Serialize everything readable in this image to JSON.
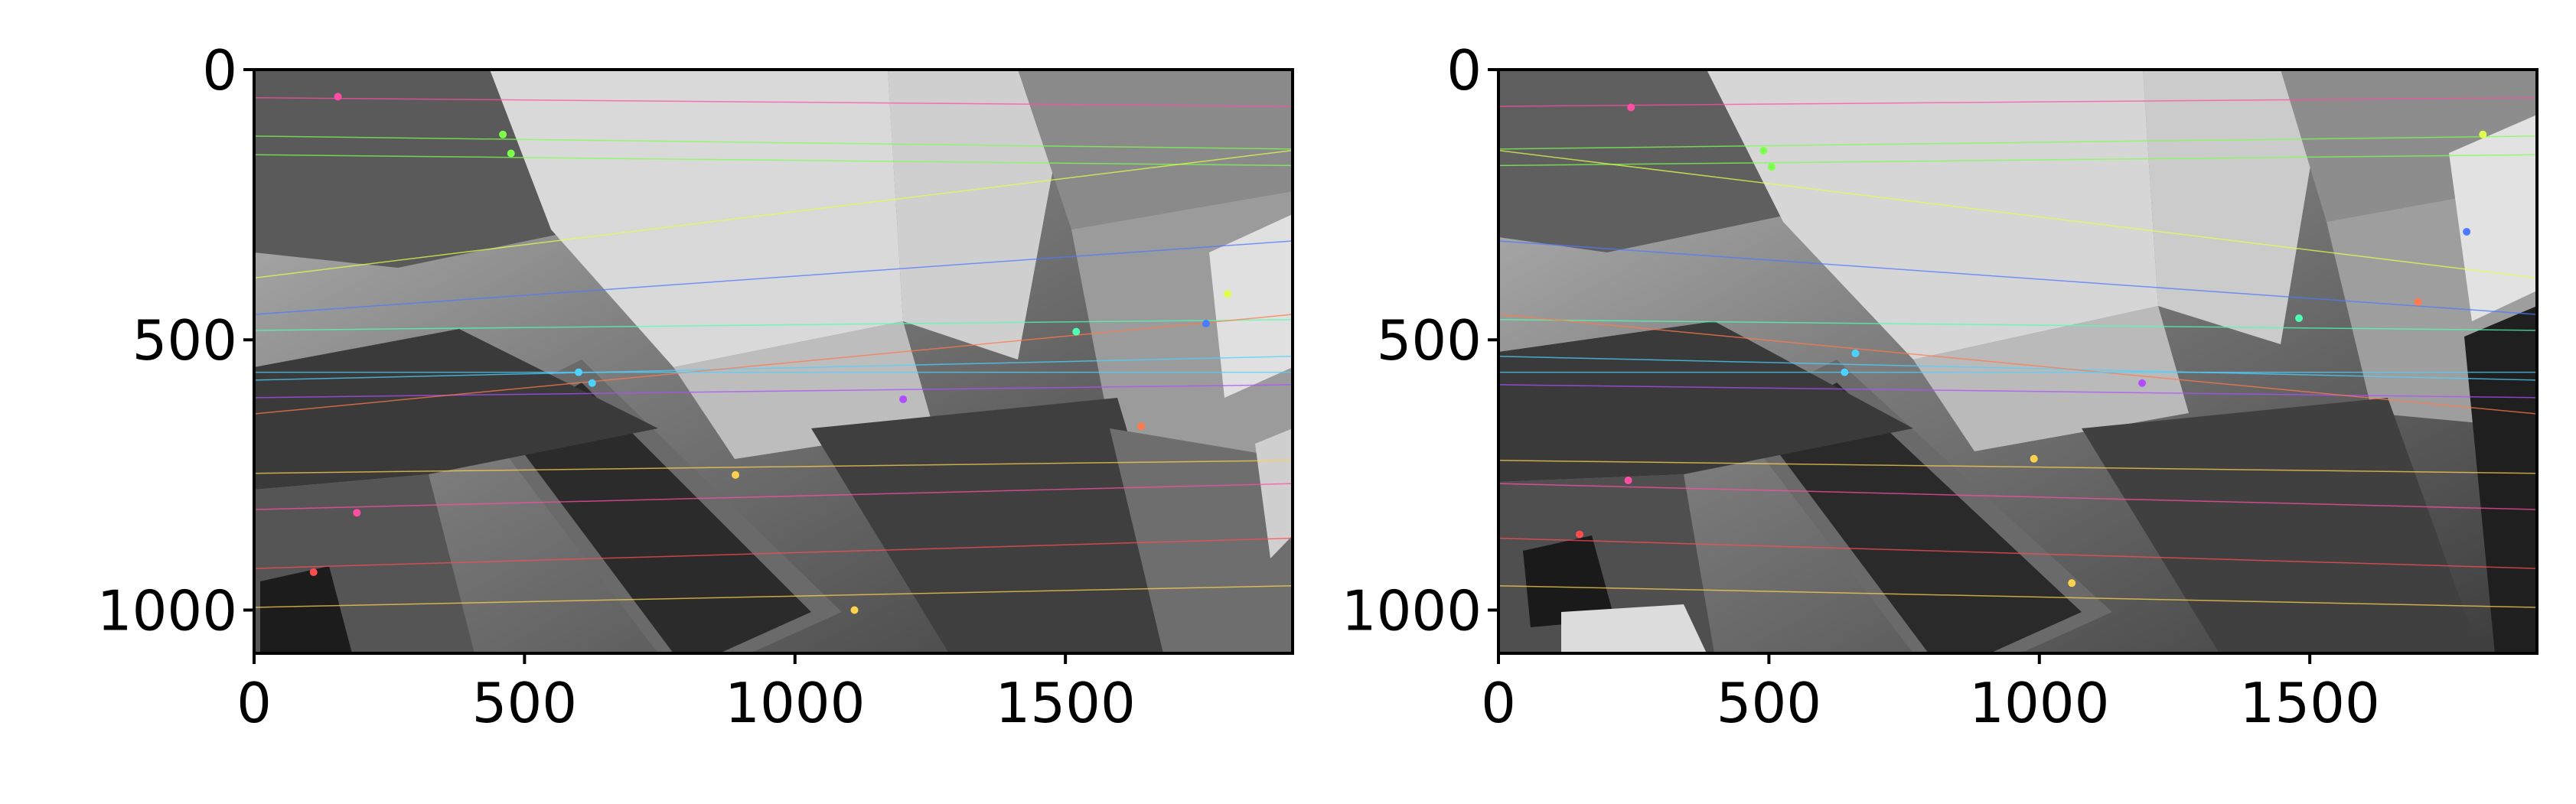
{
  "chart_data": [
    {
      "type": "scatter",
      "title": "",
      "xlabel": "",
      "ylabel": "",
      "xlim": [
        0,
        1920
      ],
      "ylim": [
        1080,
        0
      ],
      "grid": false,
      "x_ticks": [
        0,
        500,
        1000,
        1500
      ],
      "x_tick_labels": [
        "0",
        "500",
        "1000",
        "1500"
      ],
      "y_ticks": [
        0,
        500,
        1000
      ],
      "y_tick_labels": [
        "0",
        "500",
        "1000"
      ],
      "background": "grayscale aerial photo of a building model with green planters",
      "series": [
        {
          "marker": "keypoint",
          "x": [
            155,
            475,
            625,
            1110,
            1200,
            1520,
            1640,
            1760,
            1800,
            110,
            190,
            460,
            600,
            890
          ],
          "y": [
            50,
            155,
            580,
            1000,
            610,
            485,
            660,
            470,
            415,
            930,
            820,
            120,
            560,
            750
          ]
        }
      ]
    },
    {
      "type": "scatter",
      "title": "",
      "xlabel": "",
      "ylabel": "",
      "xlim": [
        0,
        1920
      ],
      "ylim": [
        1080,
        0
      ],
      "grid": false,
      "x_ticks": [
        0,
        500,
        1000,
        1500
      ],
      "x_tick_labels": [
        "0",
        "500",
        "1000",
        "1500"
      ],
      "y_ticks": [
        0,
        500,
        1000
      ],
      "y_tick_labels": [
        "0",
        "500",
        "1000"
      ],
      "background": "grayscale aerial photo of the same building model from a shifted viewpoint",
      "series": [
        {
          "marker": "keypoint",
          "x": [
            245,
            505,
            660,
            1060,
            1190,
            1480,
            1700,
            1790,
            1820,
            150,
            240,
            490,
            640,
            990
          ],
          "y": [
            70,
            180,
            525,
            950,
            580,
            460,
            430,
            300,
            120,
            860,
            760,
            150,
            560,
            720
          ]
        }
      ]
    }
  ],
  "match_colors": [
    "#ff4da6",
    "#7cff4d",
    "#4dd2ff",
    "#ffd24d",
    "#b04dff",
    "#4dffb0",
    "#ff7a4d",
    "#4d7aff",
    "#e0ff4d",
    "#ff4d4d"
  ]
}
